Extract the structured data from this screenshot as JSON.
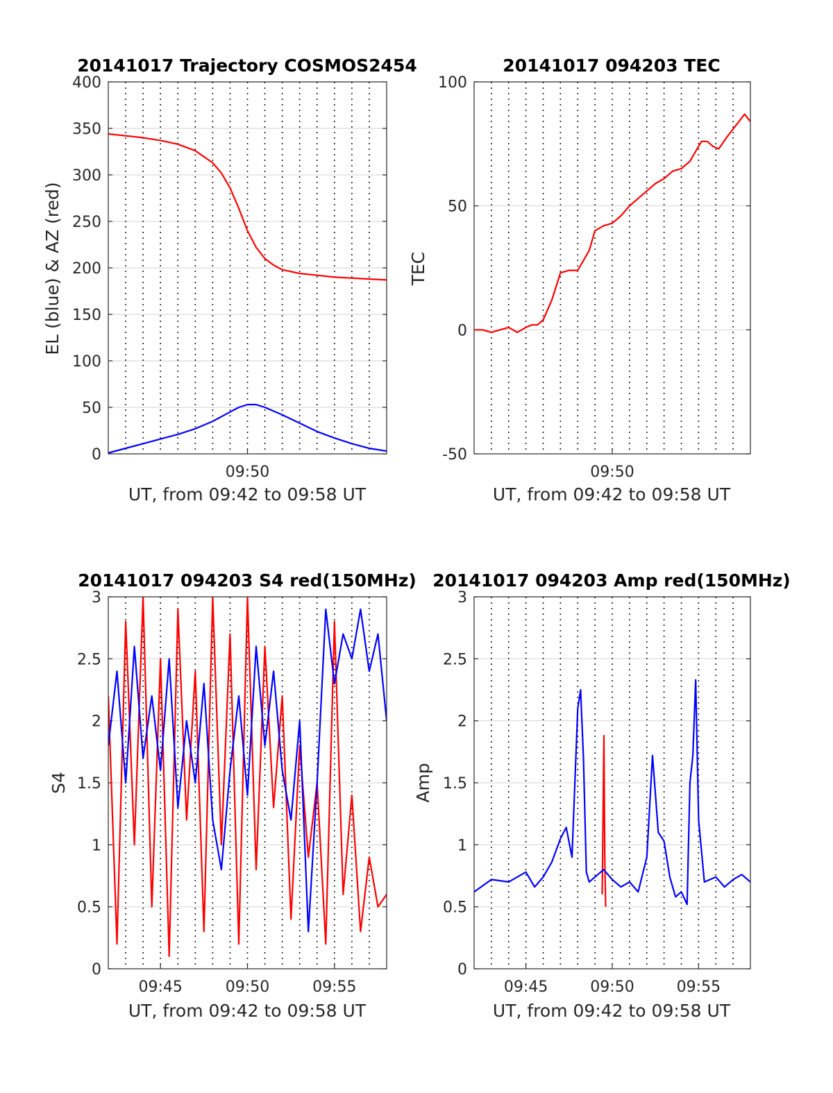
{
  "chart_data": [
    {
      "type": "line",
      "title": "20141017 Trajectory COSMOS2454",
      "xlabel": "UT, from 09:42 to 09:58 UT",
      "ylabel": "EL (blue) & AZ (red)",
      "xlim": [
        "09:42",
        "09:58"
      ],
      "ylim": [
        0,
        400
      ],
      "yticks": [
        "0",
        "50",
        "100",
        "150",
        "200",
        "250",
        "300",
        "350",
        "400"
      ],
      "xticks": [
        {
          "t": "09:50",
          "label": "09:50"
        }
      ],
      "grid": true,
      "dotted_time_lines": [
        "09:43",
        "09:44",
        "09:45",
        "09:46",
        "09:47",
        "09:48",
        "09:49",
        "09:50",
        "09:51",
        "09:52",
        "09:53",
        "09:54",
        "09:55",
        "09:56",
        "09:57"
      ],
      "series": [
        {
          "color": "#ff0000",
          "x": [
            "09:42:00",
            "09:43:00",
            "09:44:00",
            "09:45:00",
            "09:46:00",
            "09:47:00",
            "09:48:00",
            "09:48:30",
            "09:49:00",
            "09:49:30",
            "09:50:00",
            "09:50:30",
            "09:51:00",
            "09:51:30",
            "09:52:00",
            "09:53:00",
            "09:54:00",
            "09:55:00",
            "09:56:00",
            "09:57:00",
            "09:58:00"
          ],
          "values": [
            344,
            342,
            340,
            337,
            333,
            326,
            313,
            302,
            286,
            264,
            240,
            222,
            210,
            203,
            198,
            194,
            192,
            190,
            189,
            188,
            187
          ]
        },
        {
          "color": "#0000ff",
          "x": [
            "09:42:00",
            "09:43:00",
            "09:44:00",
            "09:45:00",
            "09:46:00",
            "09:47:00",
            "09:48:00",
            "09:49:00",
            "09:49:30",
            "09:50:00",
            "09:50:30",
            "09:51:00",
            "09:52:00",
            "09:53:00",
            "09:54:00",
            "09:55:00",
            "09:56:00",
            "09:57:00",
            "09:58:00"
          ],
          "values": [
            1,
            6,
            11,
            16,
            21,
            27,
            35,
            45,
            50,
            53,
            53,
            50,
            42,
            33,
            24,
            17,
            11,
            6,
            3
          ]
        }
      ]
    },
    {
      "type": "line",
      "title": "20141017 094203 TEC",
      "xlabel": "UT, from 09:42 to 09:58 UT",
      "ylabel": "TEC",
      "xlim": [
        "09:42",
        "09:58"
      ],
      "ylim": [
        -50,
        100
      ],
      "yticks": [
        "-50",
        "0",
        "50",
        "100"
      ],
      "xticks": [
        {
          "t": "09:50",
          "label": "09:50"
        }
      ],
      "grid": true,
      "dotted_time_lines": [
        "09:43",
        "09:44",
        "09:45",
        "09:46",
        "09:47",
        "09:48",
        "09:49",
        "09:50",
        "09:51",
        "09:52",
        "09:53",
        "09:54",
        "09:55",
        "09:56",
        "09:57"
      ],
      "series": [
        {
          "color": "#ff0000",
          "x": [
            "09:42:00",
            "09:42:30",
            "09:43:00",
            "09:43:30",
            "09:44:00",
            "09:44:30",
            "09:45:00",
            "09:45:20",
            "09:45:40",
            "09:46:00",
            "09:46:30",
            "09:47:00",
            "09:47:30",
            "09:48:00",
            "09:48:20",
            "09:48:40",
            "09:49:00",
            "09:49:30",
            "09:50:00",
            "09:50:30",
            "09:51:00",
            "09:51:30",
            "09:52:00",
            "09:52:30",
            "09:53:00",
            "09:53:30",
            "09:54:00",
            "09:54:30",
            "09:54:50",
            "09:55:10",
            "09:55:30",
            "09:55:50",
            "09:56:10",
            "09:56:40",
            "09:57:00",
            "09:57:20",
            "09:57:40",
            "09:58:00"
          ],
          "values": [
            0,
            0,
            -1,
            0,
            1,
            -1,
            1,
            2,
            2,
            4,
            12,
            23,
            24,
            24,
            28,
            32,
            40,
            42,
            43,
            46,
            50,
            53,
            56,
            59,
            61,
            64,
            65,
            68,
            72,
            76,
            76,
            74,
            73,
            78,
            81,
            84,
            87,
            84
          ]
        }
      ]
    },
    {
      "type": "line",
      "title": "20141017 094203 S4 red(150MHz)",
      "xlabel": "UT, from 09:42 to 09:58 UT",
      "ylabel": "S4",
      "xlim": [
        "09:42",
        "09:58"
      ],
      "ylim": [
        0,
        3
      ],
      "yticks": [
        "0",
        "0.5",
        "1",
        "1.5",
        "2",
        "2.5",
        "3"
      ],
      "xticks": [
        {
          "t": "09:45",
          "label": "09:45"
        },
        {
          "t": "09:50",
          "label": "09:50"
        },
        {
          "t": "09:55",
          "label": "09:55"
        }
      ],
      "grid": true,
      "dotted_time_lines": [
        "09:43",
        "09:44",
        "09:45",
        "09:46",
        "09:47",
        "09:48",
        "09:49",
        "09:50",
        "09:51",
        "09:52",
        "09:53",
        "09:54",
        "09:55",
        "09:56",
        "09:57"
      ],
      "series": [
        {
          "color": "#ff0000",
          "x": [
            "09:42:00",
            "09:42:30",
            "09:43:00",
            "09:43:30",
            "09:44:00",
            "09:44:30",
            "09:45:00",
            "09:45:30",
            "09:46:00",
            "09:46:30",
            "09:47:00",
            "09:47:30",
            "09:48:00",
            "09:48:30",
            "09:49:00",
            "09:49:30",
            "09:50:00",
            "09:50:30",
            "09:51:00",
            "09:51:30",
            "09:52:00",
            "09:52:30",
            "09:53:00",
            "09:53:30",
            "09:54:00",
            "09:54:30",
            "09:55:00",
            "09:55:30",
            "09:56:00",
            "09:56:30",
            "09:57:00",
            "09:57:30",
            "09:58:00"
          ],
          "values": [
            2.2,
            0.2,
            2.8,
            1.0,
            3.0,
            0.5,
            2.5,
            0.1,
            2.9,
            1.2,
            2.4,
            0.3,
            3.0,
            1.0,
            2.7,
            0.2,
            3.0,
            0.8,
            2.6,
            1.3,
            2.2,
            0.4,
            1.8,
            0.9,
            1.5,
            0.2,
            2.8,
            0.6,
            1.4,
            0.3,
            0.9,
            0.5,
            0.6
          ]
        },
        {
          "color": "#0000ff",
          "x": [
            "09:42:00",
            "09:42:30",
            "09:43:00",
            "09:43:30",
            "09:44:00",
            "09:44:30",
            "09:45:00",
            "09:45:30",
            "09:46:00",
            "09:46:30",
            "09:47:00",
            "09:47:30",
            "09:48:00",
            "09:48:30",
            "09:49:00",
            "09:49:30",
            "09:50:00",
            "09:50:30",
            "09:51:00",
            "09:51:30",
            "09:52:00",
            "09:52:30",
            "09:53:00",
            "09:53:30",
            "09:54:00",
            "09:54:30",
            "09:55:00",
            "09:55:30",
            "09:56:00",
            "09:56:30",
            "09:57:00",
            "09:57:30",
            "09:58:00"
          ],
          "values": [
            1.8,
            2.4,
            1.5,
            2.6,
            1.7,
            2.2,
            1.6,
            2.5,
            1.3,
            2.0,
            1.5,
            2.3,
            1.2,
            0.8,
            1.6,
            2.2,
            1.4,
            2.6,
            1.8,
            2.4,
            1.6,
            1.2,
            2.0,
            0.3,
            1.5,
            2.9,
            2.3,
            2.7,
            2.5,
            2.9,
            2.4,
            2.7,
            2.0
          ]
        }
      ]
    },
    {
      "type": "line",
      "title": "20141017 094203 Amp red(150MHz)",
      "xlabel": "UT, from 09:42 to 09:58 UT",
      "ylabel": "Amp",
      "xlim": [
        "09:42",
        "09:58"
      ],
      "ylim": [
        0,
        3
      ],
      "yticks": [
        "0",
        "0.5",
        "1",
        "1.5",
        "2",
        "2.5",
        "3"
      ],
      "xticks": [
        {
          "t": "09:45",
          "label": "09:45"
        },
        {
          "t": "09:50",
          "label": "09:50"
        },
        {
          "t": "09:55",
          "label": "09:55"
        }
      ],
      "grid": true,
      "dotted_time_lines": [
        "09:43",
        "09:44",
        "09:45",
        "09:46",
        "09:47",
        "09:48",
        "09:49",
        "09:50",
        "09:51",
        "09:52",
        "09:53",
        "09:54",
        "09:55",
        "09:56",
        "09:57"
      ],
      "series": [
        {
          "color": "#ff0000",
          "x": [
            "09:49:25",
            "09:49:28",
            "09:49:31",
            "09:49:34",
            "09:49:37"
          ],
          "values": [
            0.6,
            1.2,
            1.88,
            0.9,
            0.5
          ]
        },
        {
          "color": "#0000ff",
          "x": [
            "09:42:00",
            "09:43:00",
            "09:44:00",
            "09:45:00",
            "09:45:30",
            "09:46:00",
            "09:46:30",
            "09:47:00",
            "09:47:20",
            "09:47:40",
            "09:48:00",
            "09:48:10",
            "09:48:20",
            "09:48:30",
            "09:48:40",
            "09:49:00",
            "09:49:30",
            "09:50:00",
            "09:50:30",
            "09:51:00",
            "09:51:30",
            "09:52:00",
            "09:52:20",
            "09:52:40",
            "09:53:00",
            "09:53:20",
            "09:53:40",
            "09:54:00",
            "09:54:20",
            "09:54:30",
            "09:54:40",
            "09:54:50",
            "09:55:00",
            "09:55:20",
            "09:56:00",
            "09:56:30",
            "09:57:00",
            "09:57:30",
            "09:58:00"
          ],
          "values": [
            0.62,
            0.72,
            0.7,
            0.78,
            0.66,
            0.74,
            0.86,
            1.05,
            1.14,
            0.9,
            2.1,
            2.25,
            1.7,
            0.78,
            0.7,
            0.74,
            0.8,
            0.72,
            0.66,
            0.7,
            0.62,
            0.9,
            1.72,
            1.1,
            1.03,
            0.74,
            0.58,
            0.62,
            0.52,
            1.5,
            1.72,
            2.33,
            1.2,
            0.7,
            0.74,
            0.66,
            0.72,
            0.76,
            0.7
          ]
        }
      ]
    }
  ]
}
